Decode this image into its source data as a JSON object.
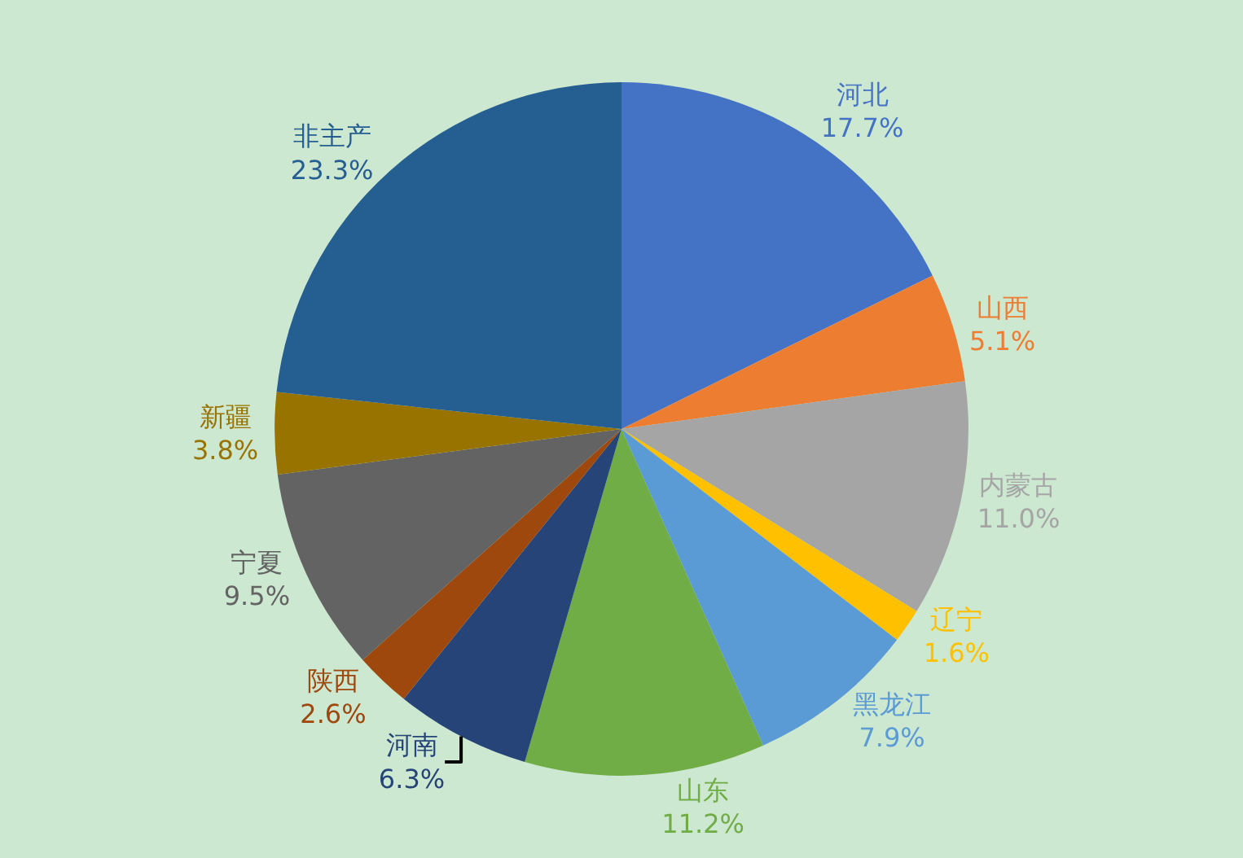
{
  "chart_data": {
    "type": "pie",
    "categories": [
      "河北",
      "山西",
      "内蒙古",
      "辽宁",
      "黑龙江",
      "山东",
      "河南",
      "陕西",
      "宁夏",
      "新疆",
      "非主产"
    ],
    "values": [
      17.7,
      5.1,
      11.0,
      1.6,
      7.9,
      11.2,
      6.3,
      2.6,
      9.5,
      3.8,
      23.3
    ],
    "value_labels": [
      "17.7%",
      "5.1%",
      "11.0%",
      "1.6%",
      "7.9%",
      "11.2%",
      "6.3%",
      "2.6%",
      "9.5%",
      "3.8%",
      "23.3%"
    ],
    "colors": [
      "#4472c4",
      "#ed7d31",
      "#a5a5a5",
      "#ffc000",
      "#5b9bd5",
      "#70ad47",
      "#264478",
      "#9e480e",
      "#636363",
      "#997300",
      "#255e91"
    ],
    "legend": false
  }
}
